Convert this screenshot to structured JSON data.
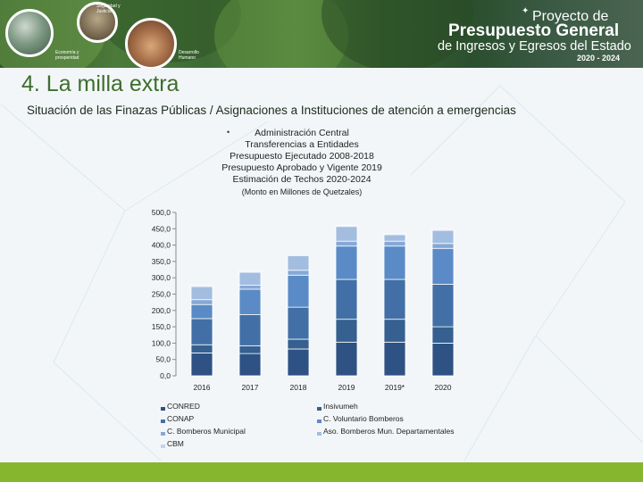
{
  "header": {
    "photo_labels": [
      "Seguridad y Justicia",
      "Economía y prosperidad",
      "Desarrollo Humano"
    ],
    "logo": {
      "line1": "Proyecto de",
      "line2": "Presupuesto General",
      "line3": "de Ingresos y Egresos del Estado",
      "years": "2020 - 2024"
    }
  },
  "slide": {
    "title": "4. La milla extra",
    "subtitle": "Situación de las Finazas Públicas / Asignaciones a Instituciones de atención a emergencias"
  },
  "chart_data": {
    "type": "bar",
    "stacked": true,
    "title_lines": [
      "Administración Central",
      "Transferencias a Entidades",
      "Presupuesto Ejecutado 2008-2018",
      "Presupuesto Aprobado y Vigente 2019",
      "Estimación de Techos 2020-2024"
    ],
    "title_bullet": "•",
    "unit_note": "(Monto en Millones de Quetzales)",
    "categories": [
      "2016",
      "2017",
      "2018",
      "2019",
      "2019*",
      "2020"
    ],
    "ylim": [
      0,
      500
    ],
    "yticks": [
      "500,0",
      "450,0",
      "400,0",
      "350,0",
      "300,0",
      "250,0",
      "200,0",
      "150,0",
      "100,0",
      "50,0",
      "0,0"
    ],
    "grid": false,
    "legend_position": "bottom",
    "series": [
      {
        "name": "CONRED",
        "color": "#2e5283",
        "values": [
          70,
          68,
          82,
          103,
          103,
          100
        ]
      },
      {
        "name": "Insivumeh",
        "color": "#35608f",
        "values": [
          25,
          24,
          30,
          70,
          70,
          50
        ]
      },
      {
        "name": "CONAP",
        "color": "#4270a6",
        "values": [
          80,
          95,
          98,
          122,
          122,
          130
        ]
      },
      {
        "name": "C. Voluntario Bomberos",
        "color": "#5a8bc6",
        "values": [
          43,
          78,
          98,
          102,
          102,
          110
        ]
      },
      {
        "name": "C. Bomberos Municipal",
        "color": "#86a8d6",
        "values": [
          15,
          12,
          15,
          15,
          15,
          15
        ]
      },
      {
        "name": "Aso. Bomberos Mun. Departamentales",
        "color": "#a3bde0",
        "values": [
          40,
          40,
          45,
          45,
          20,
          40
        ]
      },
      {
        "name": "CBM",
        "color": "#c3d3ea",
        "values": [
          3,
          3,
          3,
          3,
          3,
          3
        ]
      }
    ]
  },
  "theme": {
    "title_color": "#3d6e2d",
    "footer_color": "#86b62d"
  }
}
